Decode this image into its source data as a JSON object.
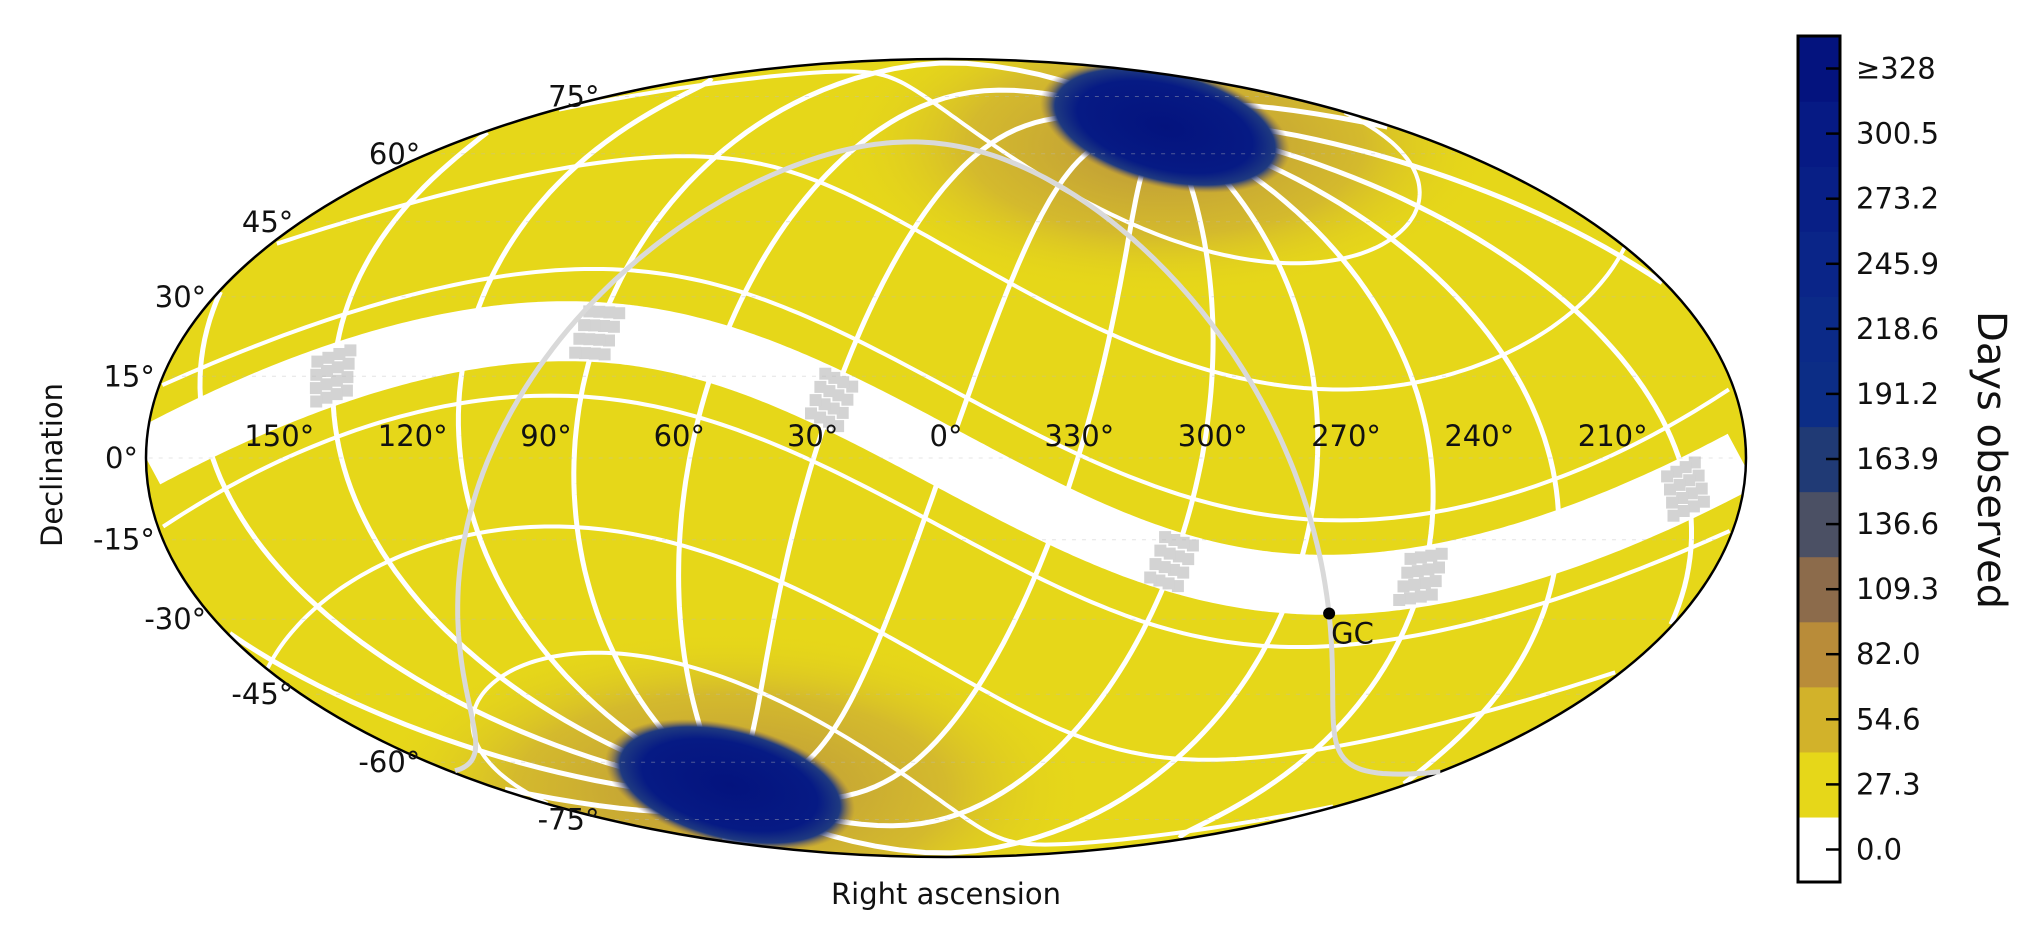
{
  "figure": {
    "xlabel": "Right ascension",
    "ylabel": "Declination",
    "projection": "mollweide"
  },
  "ra_ticks": [
    "150°",
    "120°",
    "90°",
    "60°",
    "30°",
    "0°",
    "330°",
    "300°",
    "270°",
    "240°",
    "210°"
  ],
  "dec_ticks_north": [
    "75°",
    "60°",
    "45°",
    "30°",
    "15°",
    "0°"
  ],
  "dec_ticks_south": [
    "-15°",
    "-30°",
    "-45°",
    "-60°",
    "-75°"
  ],
  "galactic_center": {
    "label": "GC",
    "ra_deg": 266.4,
    "dec_deg": -28.9
  },
  "colorbar": {
    "title": "Days observed",
    "tick_labels": [
      "≥328",
      "300.5",
      "273.2",
      "245.9",
      "218.6",
      "191.2",
      "163.9",
      "136.6",
      "109.3",
      "82.0",
      "54.6",
      "27.3",
      "0.0"
    ],
    "color_bins": [
      {
        "upper": 27.3,
        "color": "#ffffff"
      },
      {
        "upper": 54.6,
        "color": "#e6d719"
      },
      {
        "upper": 82.0,
        "color": "#d2b22a"
      },
      {
        "upper": 109.3,
        "color": "#b98c39"
      },
      {
        "upper": 136.6,
        "color": "#8c6b4b"
      },
      {
        "upper": 163.9,
        "color": "#4b5064"
      },
      {
        "upper": 191.2,
        "color": "#203a75"
      },
      {
        "upper": 218.6,
        "color": "#0c2d86"
      },
      {
        "upper": 245.9,
        "color": "#0b2a88"
      },
      {
        "upper": 273.2,
        "color": "#0a2588"
      },
      {
        "upper": 300.5,
        "color": "#081f86"
      },
      {
        "upper": 328.0,
        "color": "#061a84"
      },
      {
        "upper": 360.0,
        "color": "#04137e"
      }
    ]
  },
  "colors": {
    "sector_fill": "#e6d719",
    "overlap_fill": "#c8a63a",
    "overlap_dark": "#b38b3f",
    "cvz_fill": "#08177f",
    "ecliptic_gap": "#ffffff",
    "gap_sectors": "#d3d3d3",
    "ecliptic_curve": "#d9d9d9"
  }
}
